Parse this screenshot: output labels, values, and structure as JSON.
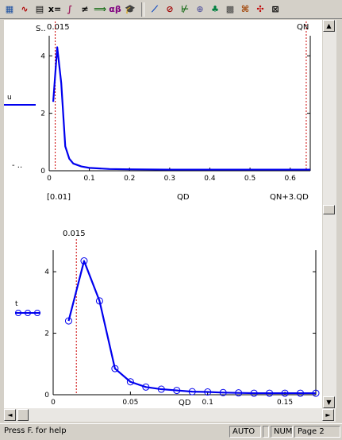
{
  "toolbar": {
    "icons": [
      {
        "name": "calculator-icon",
        "glyph": "▦"
      },
      {
        "name": "graph-toolbar-icon",
        "glyph": "∿"
      },
      {
        "name": "matrix-icon",
        "glyph": "▤"
      },
      {
        "name": "evaluation-icon",
        "label": "x="
      },
      {
        "name": "calculus-icon",
        "glyph": "∫"
      },
      {
        "name": "boolean-icon",
        "glyph": "≠"
      },
      {
        "name": "programming-icon",
        "glyph": "⟹"
      },
      {
        "name": "greek-icon",
        "label": "αβ"
      },
      {
        "name": "symbolic-icon",
        "glyph": "🎓"
      },
      {
        "name": "xy-plot-icon",
        "glyph": "⟋"
      },
      {
        "name": "polar-plot-icon",
        "glyph": "⊘"
      },
      {
        "name": "surface-plot-icon",
        "glyph": "⊬"
      },
      {
        "name": "contour-plot-icon",
        "glyph": "⊕"
      },
      {
        "name": "3d-bar-icon",
        "glyph": "♣"
      },
      {
        "name": "scatter-3d-icon",
        "glyph": "▩"
      },
      {
        "name": "vector-field-icon",
        "glyph": "⌘"
      },
      {
        "name": "plot-wizard-icon",
        "glyph": "✣"
      },
      {
        "name": "close-toolbar-icon",
        "glyph": "⊠"
      }
    ]
  },
  "top_plot": {
    "corner_label": "S..",
    "left_label": "u",
    "left_bottom_label": "- ..",
    "marker_left_label": "0.015",
    "marker_right_label": "QN",
    "bottom_left_label": "[0.01]",
    "bottom_center_label": "QD",
    "bottom_right_label": "QN+3.QD",
    "colors": {
      "line": "#0000ee",
      "marker": "#cc0000",
      "axis": "#000000"
    }
  },
  "bottom_plot": {
    "left_label": "t",
    "marker_label": "0.015",
    "xlabel": "QD",
    "colors": {
      "line": "#0000ee",
      "marker": "#cc0000",
      "axis": "#000000"
    }
  },
  "chart_data": [
    {
      "type": "line",
      "title": "",
      "xlabel": "QD",
      "ylabel": "",
      "xlim": [
        0,
        0.65
      ],
      "ylim": [
        0,
        4.7
      ],
      "x_ticks": [
        "0",
        "0.1",
        "0.2",
        "0.3",
        "0.4",
        "0.5",
        "0.6"
      ],
      "y_ticks": [
        "4",
        "2",
        "0"
      ],
      "vertical_markers": [
        0.015,
        0.64
      ],
      "series": [
        {
          "x": [
            0.01,
            0.02,
            0.03,
            0.04,
            0.05,
            0.06,
            0.08,
            0.1,
            0.15,
            0.2,
            0.3,
            0.4,
            0.5,
            0.6,
            0.65
          ],
          "values": [
            2.4,
            4.3,
            3.05,
            0.85,
            0.42,
            0.25,
            0.15,
            0.1,
            0.06,
            0.05,
            0.04,
            0.04,
            0.04,
            0.04,
            0.04
          ]
        }
      ]
    },
    {
      "type": "line",
      "title": "",
      "xlabel": "QD",
      "ylabel": "",
      "xlim": [
        0,
        0.17
      ],
      "ylim": [
        0,
        4.7
      ],
      "x_ticks": [
        "0",
        "0.05",
        "0.1",
        "0.15"
      ],
      "y_ticks": [
        "4",
        "2",
        "0"
      ],
      "vertical_markers": [
        0.015
      ],
      "series": [
        {
          "x": [
            0.01,
            0.02,
            0.03,
            0.04,
            0.05,
            0.06,
            0.07,
            0.08,
            0.09,
            0.1,
            0.11,
            0.12,
            0.13,
            0.14,
            0.15,
            0.16,
            0.17
          ],
          "values": [
            2.4,
            4.35,
            3.05,
            0.85,
            0.42,
            0.25,
            0.18,
            0.14,
            0.1,
            0.09,
            0.07,
            0.06,
            0.05,
            0.05,
            0.05,
            0.05,
            0.05
          ]
        }
      ]
    }
  ],
  "scrollbars": {
    "up": "▲",
    "down": "▼",
    "left": "◄",
    "right": "►"
  },
  "status": {
    "help": "Press F. for help",
    "mode": "AUTO",
    "num": "NUM",
    "page": "Page 2"
  }
}
